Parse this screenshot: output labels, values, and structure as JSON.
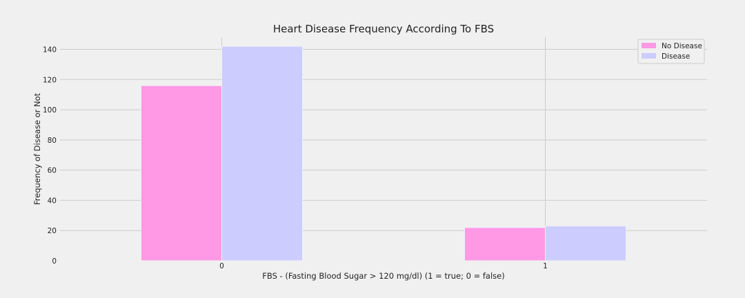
{
  "chart_data": {
    "type": "bar",
    "title": "Heart Disease Frequency According To FBS",
    "xlabel": "FBS - (Fasting Blood Sugar > 120 mg/dl) (1 = true; 0 = false)",
    "ylabel": "Frequency of Disease or Not",
    "categories": [
      "0",
      "1"
    ],
    "series": [
      {
        "name": "No Disease",
        "values": [
          116,
          22
        ],
        "color": "#ff99e6"
      },
      {
        "name": "Disease",
        "values": [
          142,
          23
        ],
        "color": "#ccccff"
      }
    ],
    "ylim": [
      0,
      148
    ],
    "yticks": [
      0,
      20,
      40,
      60,
      80,
      100,
      120,
      140
    ],
    "grid": true,
    "legend_position": "top-right",
    "background": "#f0f0f0"
  }
}
